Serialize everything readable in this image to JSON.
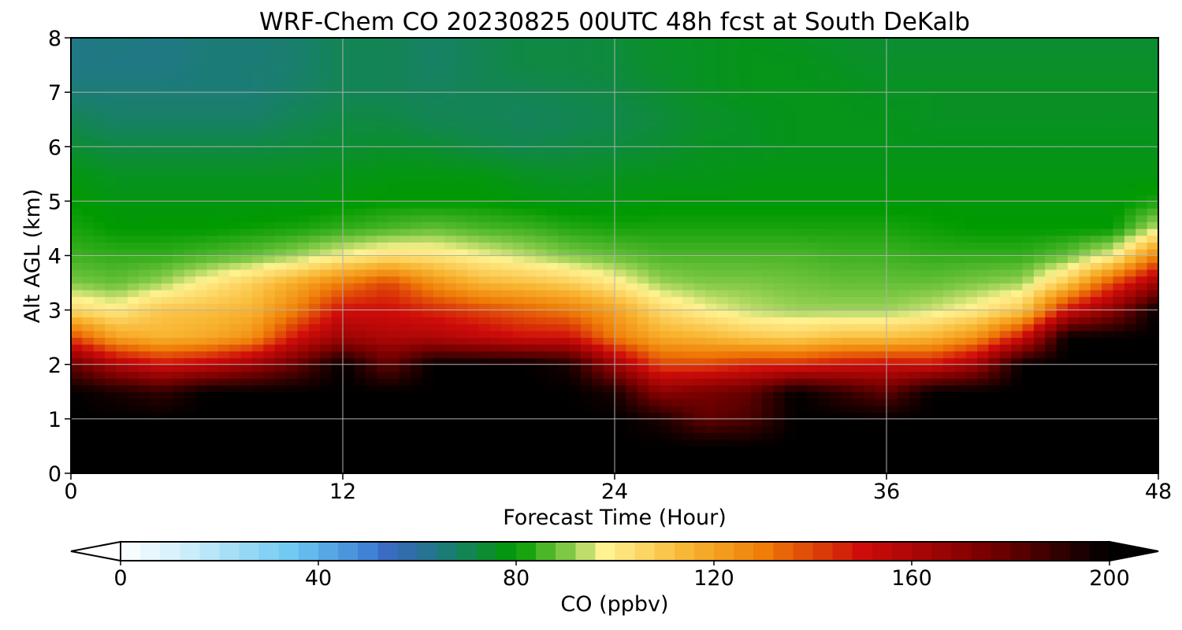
{
  "chart_data": {
    "type": "heatmap",
    "title": "WRF-Chem CO  20230825 00UTC 48h fcst at South DeKalb",
    "xlabel": "Forecast Time (Hour)",
    "ylabel": "Alt AGL (km)",
    "xlim": [
      0,
      48
    ],
    "ylim": [
      0,
      8
    ],
    "x_ticks": [
      "0",
      "12",
      "24",
      "36",
      "48"
    ],
    "y_ticks": [
      "0",
      "1",
      "2",
      "3",
      "4",
      "5",
      "6",
      "7",
      "8"
    ],
    "grid": true,
    "x": [
      0,
      2,
      4,
      6,
      8,
      10,
      12,
      14,
      16,
      18,
      20,
      22,
      24,
      26,
      28,
      30,
      32,
      34,
      36,
      38,
      40,
      42,
      44,
      46,
      48
    ],
    "y": [
      0,
      0.5,
      1,
      1.5,
      2,
      2.5,
      3,
      3.5,
      4,
      4.5,
      5,
      5.5,
      6,
      6.5,
      7,
      7.5,
      8
    ],
    "profile_note_free": true,
    "bl_top_km": [
      2.4,
      1.5,
      1.7,
      1.9,
      2.0,
      1.9,
      1.8,
      1.6,
      2.3,
      2.4,
      2.4,
      2.3,
      2.0,
      1.7,
      1.6,
      1.6,
      1.7,
      1.8,
      1.8,
      1.9,
      2.1,
      2.6,
      3.1,
      3.3,
      3.6
    ],
    "plume_top_km": [
      2.8,
      2.6,
      3.3,
      3.4,
      3.6,
      3.9,
      4.1,
      4.3,
      4.3,
      4.2,
      4.1,
      3.9,
      3.6,
      3.3,
      3.0,
      2.8,
      2.5,
      2.4,
      2.4,
      2.6,
      2.8,
      3.2,
      3.7,
      4.0,
      4.7
    ],
    "z": [
      [
        200,
        200,
        200,
        200,
        180,
        140,
        105,
        90,
        85,
        82,
        80,
        78,
        74,
        70,
        66,
        64,
        64
      ],
      [
        200,
        200,
        200,
        195,
        160,
        120,
        100,
        88,
        84,
        80,
        78,
        76,
        72,
        68,
        66,
        64,
        65
      ],
      [
        200,
        200,
        200,
        190,
        150,
        115,
        110,
        92,
        84,
        80,
        78,
        76,
        72,
        68,
        66,
        64,
        64
      ],
      [
        200,
        200,
        200,
        200,
        155,
        118,
        112,
        100,
        86,
        80,
        78,
        76,
        72,
        68,
        66,
        66,
        66
      ],
      [
        200,
        200,
        200,
        200,
        165,
        125,
        115,
        108,
        88,
        81,
        78,
        76,
        72,
        68,
        66,
        66,
        66
      ],
      [
        200,
        200,
        200,
        200,
        180,
        150,
        130,
        118,
        92,
        82,
        78,
        76,
        73,
        70,
        68,
        67,
        67
      ],
      [
        200,
        200,
        200,
        200,
        200,
        165,
        150,
        130,
        98,
        84,
        79,
        77,
        74,
        72,
        70,
        70,
        70
      ],
      [
        200,
        200,
        200,
        200,
        180,
        160,
        150,
        140,
        103,
        86,
        80,
        78,
        75,
        72,
        70,
        70,
        70
      ],
      [
        200,
        200,
        200,
        200,
        200,
        160,
        145,
        125,
        102,
        88,
        80,
        78,
        74,
        70,
        69,
        68,
        68
      ],
      [
        200,
        200,
        200,
        200,
        200,
        155,
        140,
        115,
        98,
        86,
        80,
        78,
        72,
        70,
        70,
        70,
        70
      ],
      [
        200,
        200,
        200,
        200,
        200,
        150,
        135,
        112,
        94,
        85,
        79,
        76,
        71,
        69,
        70,
        72,
        72
      ],
      [
        200,
        200,
        200,
        200,
        195,
        150,
        130,
        108,
        90,
        83,
        78,
        75,
        72,
        70,
        71,
        72,
        72
      ],
      [
        200,
        200,
        200,
        195,
        165,
        130,
        120,
        100,
        88,
        82,
        78,
        76,
        73,
        71,
        72,
        73,
        73
      ],
      [
        200,
        200,
        195,
        170,
        140,
        118,
        105,
        92,
        86,
        82,
        79,
        77,
        74,
        73,
        74,
        75,
        75
      ],
      [
        200,
        200,
        180,
        175,
        140,
        115,
        98,
        90,
        86,
        82,
        79,
        77,
        76,
        75,
        76,
        76,
        76
      ],
      [
        200,
        200,
        185,
        180,
        145,
        110,
        94,
        90,
        86,
        82,
        79,
        78,
        76,
        76,
        77,
        77,
        77
      ],
      [
        200,
        200,
        200,
        200,
        145,
        108,
        92,
        89,
        86,
        82,
        79,
        78,
        77,
        77,
        77,
        77,
        76
      ],
      [
        200,
        200,
        200,
        190,
        150,
        112,
        92,
        88,
        85,
        82,
        79,
        78,
        77,
        77,
        77,
        76,
        75
      ],
      [
        200,
        200,
        200,
        180,
        152,
        112,
        92,
        88,
        85,
        82,
        79,
        78,
        77,
        77,
        76,
        75,
        74
      ],
      [
        200,
        200,
        200,
        200,
        150,
        115,
        95,
        88,
        84,
        81,
        79,
        78,
        77,
        76,
        76,
        75,
        74
      ],
      [
        200,
        200,
        200,
        200,
        165,
        125,
        100,
        90,
        84,
        80,
        79,
        78,
        77,
        76,
        76,
        75,
        74
      ],
      [
        200,
        200,
        200,
        200,
        200,
        150,
        110,
        92,
        84,
        80,
        79,
        78,
        77,
        76,
        76,
        75,
        74
      ],
      [
        200,
        200,
        200,
        200,
        200,
        200,
        150,
        110,
        88,
        80,
        79,
        78,
        77,
        76,
        76,
        75,
        74
      ],
      [
        200,
        200,
        200,
        200,
        200,
        200,
        170,
        140,
        98,
        80,
        79,
        78,
        77,
        76,
        76,
        75,
        74
      ],
      [
        200,
        200,
        200,
        200,
        200,
        200,
        200,
        165,
        130,
        95,
        82,
        78,
        77,
        76,
        76,
        75,
        74
      ]
    ],
    "colorbar": {
      "label": "CO  (ppbv)",
      "min": 0,
      "max": 200,
      "ticks": [
        "0",
        "40",
        "80",
        "120",
        "160",
        "200"
      ],
      "extend": "both",
      "colors": [
        "#ffffff",
        "#c6ecfa",
        "#6cc8f2",
        "#3f82d6",
        "#3a66be",
        "#1d7a7e",
        "#009a00",
        "#7ec845",
        "#fff290",
        "#f8b430",
        "#ef7d07",
        "#cf0c0a",
        "#7a0000",
        "#000000"
      ],
      "color_stops": [
        0,
        15,
        35,
        50,
        55,
        65,
        80,
        90,
        98,
        115,
        130,
        150,
        175,
        200
      ]
    }
  }
}
